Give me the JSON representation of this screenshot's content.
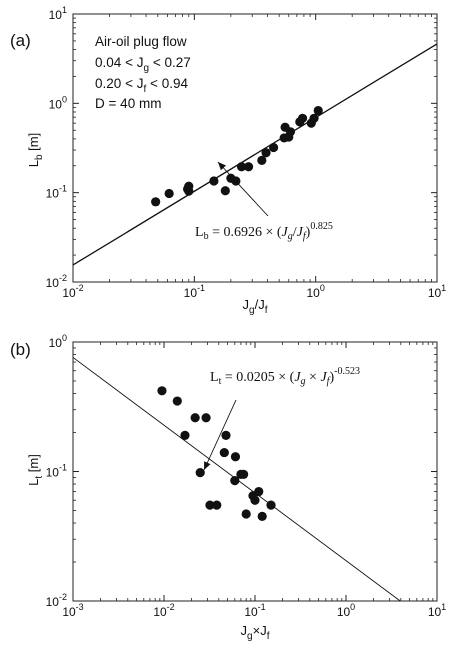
{
  "chart_data": [
    {
      "type": "scatter",
      "panel_label": "(a)",
      "xlabel": "Jg/Jf",
      "ylabel": "Lb [m]",
      "xscale": "log",
      "yscale": "log",
      "xlim": [
        0.01,
        10
      ],
      "ylim": [
        0.01,
        10
      ],
      "x_ticks": [
        "10-2",
        "10-1",
        "100",
        "101"
      ],
      "y_ticks": [
        "10-2",
        "10-1",
        "100",
        "101"
      ],
      "annotation_lines": [
        "Air-oil plug flow",
        "0.04 < Jg < 0.27",
        "0.20 < Jf < 0.94",
        "D = 40 mm"
      ],
      "equation": "Lb = 0.6926 × (Jg/Jf)^0.825",
      "fit": {
        "coefficient": 0.6926,
        "exponent": 0.825
      },
      "x": [
        0.048,
        0.062,
        0.088,
        0.09,
        0.09,
        0.145,
        0.18,
        0.2,
        0.22,
        0.245,
        0.28,
        0.36,
        0.39,
        0.45,
        0.55,
        0.56,
        0.6,
        0.62,
        0.74,
        0.78,
        0.92,
        0.97,
        1.05
      ],
      "y": [
        0.079,
        0.098,
        0.11,
        0.118,
        0.104,
        0.135,
        0.105,
        0.145,
        0.135,
        0.195,
        0.195,
        0.23,
        0.28,
        0.32,
        0.41,
        0.54,
        0.42,
        0.48,
        0.62,
        0.68,
        0.6,
        0.68,
        0.83
      ]
    },
    {
      "type": "scatter",
      "panel_label": "(b)",
      "xlabel": "Jg×Jf",
      "ylabel": "Lt [m]",
      "xscale": "log",
      "yscale": "log",
      "xlim": [
        0.001,
        10
      ],
      "ylim": [
        0.01,
        1
      ],
      "x_ticks": [
        "10-3",
        "10-2",
        "10-1",
        "100",
        "101"
      ],
      "y_ticks": [
        "10-2",
        "10-1",
        "100"
      ],
      "equation": "Lt = 0.0205 × (Jg × Jf)^-0.523",
      "fit": {
        "coefficient": 0.0205,
        "exponent": -0.523
      },
      "x": [
        0.0095,
        0.014,
        0.017,
        0.022,
        0.025,
        0.029,
        0.032,
        0.038,
        0.046,
        0.048,
        0.06,
        0.061,
        0.07,
        0.075,
        0.08,
        0.095,
        0.1,
        0.11,
        0.12,
        0.15
      ],
      "y": [
        0.42,
        0.35,
        0.19,
        0.26,
        0.098,
        0.26,
        0.055,
        0.055,
        0.14,
        0.19,
        0.085,
        0.13,
        0.095,
        0.095,
        0.047,
        0.065,
        0.06,
        0.07,
        0.045,
        0.055
      ]
    }
  ]
}
